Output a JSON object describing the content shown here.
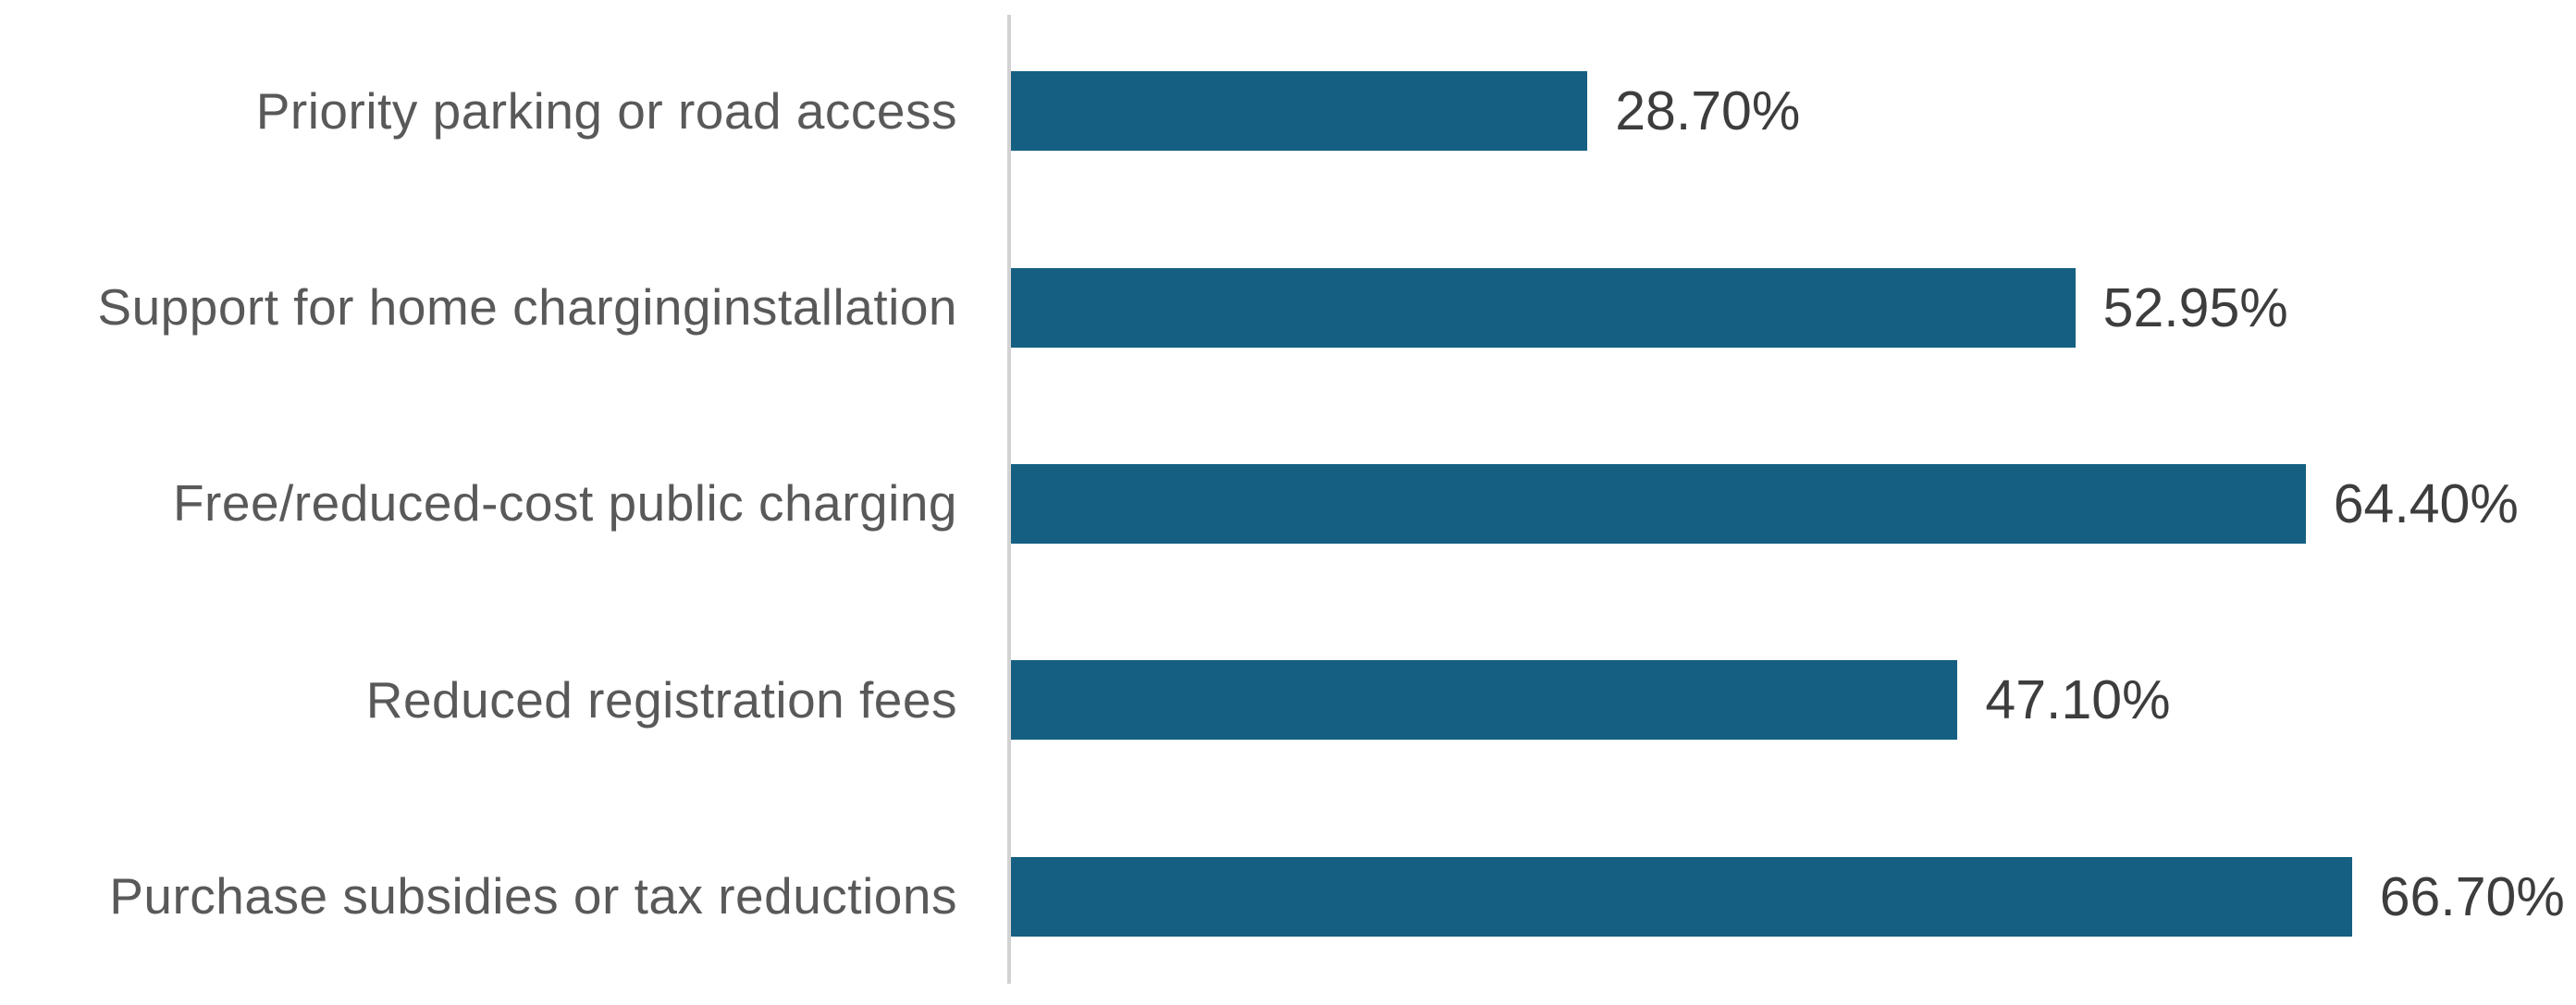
{
  "chart_data": {
    "type": "bar",
    "orientation": "horizontal",
    "title": "",
    "xlabel": "",
    "ylabel": "",
    "categories": [
      "Priority parking or road access",
      "Support for home charginginstallation",
      "Free/reduced-cost public charging",
      "Reduced registration fees",
      "Purchase subsidies or tax reductions"
    ],
    "values": [
      28.7,
      52.95,
      64.4,
      47.1,
      66.7
    ],
    "value_labels": [
      "28.70%",
      "52.95%",
      "64.40%",
      "47.10%",
      "66.70%"
    ],
    "xlim": [
      0,
      77.8
    ],
    "grid": false,
    "legend": false,
    "data_labels_position": "outside-end",
    "colors": {
      "bar_fill": "#156082",
      "axis_line": "#d2d2d2",
      "category_text": "#595959",
      "value_text": "#3d3d3d",
      "background": "#ffffff"
    }
  }
}
